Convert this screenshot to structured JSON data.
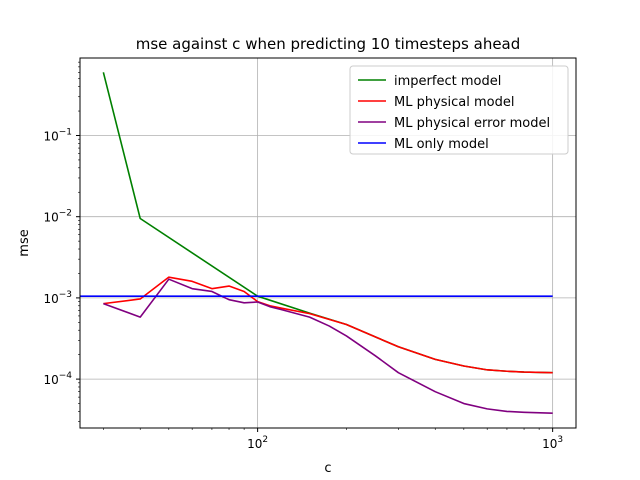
{
  "chart_data": {
    "type": "line",
    "title": "mse against c when predicting 10 timesteps ahead",
    "xlabel": "c",
    "ylabel": "mse",
    "xscale": "log",
    "yscale": "log",
    "xlim": [
      25,
      1200
    ],
    "ylim": [
      2.5e-05,
      0.9
    ],
    "grid": true,
    "legend_position": "top-right",
    "x_ticks": [
      {
        "value": 100,
        "base": "10",
        "exp": "2"
      },
      {
        "value": 1000,
        "base": "10",
        "exp": "3"
      }
    ],
    "y_ticks": [
      {
        "value": 0.0001,
        "base": "10",
        "exp": "−4"
      },
      {
        "value": 0.001,
        "base": "10",
        "exp": "−3"
      },
      {
        "value": 0.01,
        "base": "10",
        "exp": "−2"
      },
      {
        "value": 0.1,
        "base": "10",
        "exp": "−1"
      }
    ],
    "series": [
      {
        "name": "imperfect model",
        "color": "#008000",
        "x": [
          30,
          40,
          100,
          150,
          200,
          300,
          400,
          500,
          600,
          700,
          800,
          1000
        ],
        "y": [
          0.6,
          0.0095,
          0.00105,
          0.00065,
          0.00047,
          0.00025,
          0.000175,
          0.000145,
          0.00013,
          0.000125,
          0.000122,
          0.00012
        ]
      },
      {
        "name": "ML physical model",
        "color": "#ff0000",
        "x": [
          30,
          40,
          50,
          60,
          70,
          80,
          90,
          100,
          110,
          120,
          150,
          200,
          300,
          400,
          500,
          600,
          700,
          800,
          1000
        ],
        "y": [
          0.00085,
          0.00097,
          0.0018,
          0.0016,
          0.0013,
          0.0014,
          0.0012,
          0.0009,
          0.0008,
          0.00075,
          0.00064,
          0.00047,
          0.00025,
          0.000175,
          0.000145,
          0.00013,
          0.000125,
          0.000122,
          0.00012
        ]
      },
      {
        "name": "ML physical error model",
        "color": "#800080",
        "x": [
          30,
          40,
          50,
          60,
          70,
          80,
          90,
          100,
          110,
          120,
          150,
          175,
          200,
          250,
          300,
          400,
          500,
          600,
          700,
          800,
          1000
        ],
        "y": [
          0.00085,
          0.00058,
          0.0017,
          0.0013,
          0.0012,
          0.00095,
          0.00087,
          0.00089,
          0.00078,
          0.00072,
          0.00058,
          0.00045,
          0.00034,
          0.000195,
          0.00012,
          7e-05,
          5e-05,
          4.3e-05,
          4e-05,
          3.9e-05,
          3.8e-05
        ]
      },
      {
        "name": "ML only model",
        "color": "#0000ff",
        "x": [
          25,
          1000
        ],
        "y": [
          0.00105,
          0.00105
        ]
      }
    ]
  }
}
